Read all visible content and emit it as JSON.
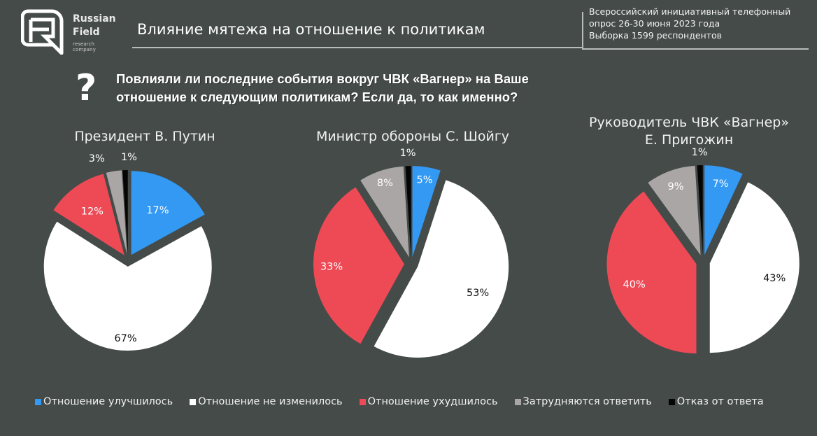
{
  "header": {
    "logo": {
      "name_line1": "Russian",
      "name_line2": "Field",
      "subtitle": "research company"
    },
    "title": "Влияние мятежа на отношение к политикам",
    "survey_info": [
      "Всероссийский инициативный телефонный",
      "опрос 26-30 июня 2023 года",
      "Выборка 1599 респондентов"
    ]
  },
  "question": {
    "icon": "question-mark-icon",
    "line1": "Повлияли ли последние события вокруг ЧВК «Вагнер» на Ваше",
    "line2": "отношение к следующим политикам? Если да, то как именно?"
  },
  "colors": {
    "background": "#444b49",
    "improved": "#3399f3",
    "unchanged": "#ffffff",
    "worsened": "#ee4a55",
    "hard_to_say": "#aaa6a5",
    "refused": "#050505"
  },
  "legend": [
    {
      "label": "Отношение улучшилось",
      "color": "#3399f3"
    },
    {
      "label": "Отношение не изменилось",
      "color": "#ffffff"
    },
    {
      "label": "Отношение ухудшилось",
      "color": "#ee4a55"
    },
    {
      "label": "Затрудняются ответить",
      "color": "#aaa6a5"
    },
    {
      "label": "Отказ от ответа",
      "color": "#050505"
    }
  ],
  "chart_data": [
    {
      "type": "pie",
      "title": "Президент В. Путин",
      "categories": [
        "Отношение улучшилось",
        "Отношение не изменилось",
        "Отношение ухудшилось",
        "Затрудняются ответить",
        "Отказ от ответа"
      ],
      "values": [
        17,
        67,
        12,
        3,
        1
      ],
      "labels": [
        "17%",
        "67%",
        "12%",
        "3%",
        "1%"
      ],
      "start_angle": "12 o'clock, clockwise",
      "exploded": true
    },
    {
      "type": "pie",
      "title": "Министр обороны С. Шойгу",
      "categories": [
        "Отношение улучшилось",
        "Отношение не изменилось",
        "Отношение ухудшилось",
        "Затрудняются ответить",
        "Отказ от ответа"
      ],
      "values": [
        5,
        53,
        33,
        8,
        1
      ],
      "labels": [
        "5%",
        "53%",
        "33%",
        "8%",
        "1%"
      ],
      "start_angle": "12 o'clock, clockwise",
      "exploded": true
    },
    {
      "type": "pie",
      "title": "Руководитель ЧВК «Вагнер» Е. Пригожин",
      "title_lines": [
        "Руководитель ЧВК «Вагнер»",
        "Е. Пригожин"
      ],
      "categories": [
        "Отношение улучшилось",
        "Отношение не изменилось",
        "Отношение ухудшилось",
        "Затрудняются ответить",
        "Отказ от ответа"
      ],
      "values": [
        7,
        43,
        40,
        9,
        1
      ],
      "labels": [
        "7%",
        "43%",
        "40%",
        "9%",
        "1%"
      ],
      "start_angle": "12 o'clock, clockwise",
      "exploded": true
    }
  ]
}
